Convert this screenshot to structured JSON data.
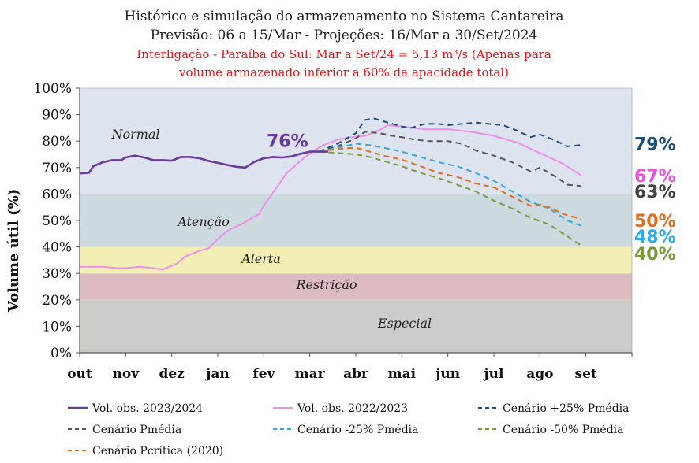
{
  "chart_data": {
    "type": "line",
    "title_lines": [
      "Histórico e simulação do armazenamento no Sistema Cantareira",
      "Previsão: 06 a 15/Mar -  Projeções: 16/Mar a 30/Set/2024"
    ],
    "subtitle_red_lines": [
      "Interligação - Paraíba do Sul:  Mar a Set/24 = 5,13 m³/s (Apenas para",
      "volume armazenado inferior a 60% da apacidade total)"
    ],
    "ylabel": "Volume útil (%)",
    "ylim": [
      0,
      100
    ],
    "yticks": [
      "0%",
      "10%",
      "20%",
      "30%",
      "40%",
      "50%",
      "60%",
      "70%",
      "80%",
      "90%",
      "100%"
    ],
    "xtick_labels": [
      "out",
      "nov",
      "dez",
      "jan",
      "fev",
      "mar",
      "abr",
      "mai",
      "jun",
      "jul",
      "ago",
      "set"
    ],
    "zones": [
      {
        "name": "Especial",
        "from": 0,
        "to": 20,
        "color": "#cdccc8"
      },
      {
        "name": "Restrição",
        "from": 20,
        "to": 30,
        "color": "#dcbcc0"
      },
      {
        "name": "Alerta",
        "from": 30,
        "to": 40,
        "color": "#f3eeb4"
      },
      {
        "name": "Atenção",
        "from": 40,
        "to": 60,
        "color": "#ccdae0"
      },
      {
        "name": "Normal",
        "from": 60,
        "to": 100,
        "color": "#dde3ef"
      }
    ],
    "annotation": {
      "text": "76%",
      "color": "#6a3a9c"
    },
    "series": [
      {
        "name": "Vol. obs. 2023/2024",
        "color": "#6a3a9c",
        "dash": "solid",
        "x": [
          0.0,
          0.2,
          0.3,
          0.5,
          0.7,
          0.9,
          1.0,
          1.2,
          1.4,
          1.6,
          1.8,
          2.0,
          2.2,
          2.4,
          2.6,
          2.8,
          3.0,
          3.2,
          3.4,
          3.6,
          3.8,
          4.0,
          4.2,
          4.4,
          4.6,
          4.8,
          5.0,
          5.2,
          5.4
        ],
        "y": [
          67.8,
          68.0,
          70.5,
          72.0,
          72.8,
          72.8,
          73.8,
          74.5,
          73.8,
          72.8,
          72.8,
          72.6,
          74.0,
          74.0,
          73.5,
          72.5,
          71.8,
          71.0,
          70.3,
          70.0,
          72.2,
          73.5,
          74.0,
          73.8,
          74.2,
          75.2,
          76.0,
          76.0,
          76.0
        ]
      },
      {
        "name": "Vol. obs. 2022/2023",
        "color": "#ee90ea",
        "dash": "solid",
        "x": [
          0.0,
          0.5,
          0.8,
          1.0,
          1.3,
          1.6,
          1.8,
          1.9,
          2.1,
          2.3,
          2.6,
          2.8,
          3.0,
          3.2,
          3.5,
          3.8,
          3.9,
          4.0,
          4.1,
          4.3,
          4.5,
          4.7,
          4.9,
          5.1,
          5.3,
          5.6,
          5.9,
          6.2,
          6.5,
          6.7,
          7.0,
          7.5,
          8.0,
          8.5,
          9.0,
          9.5,
          10.0,
          10.5,
          10.9
        ],
        "y": [
          32.5,
          32.5,
          32.0,
          32.0,
          32.5,
          32.0,
          31.5,
          32.2,
          33.5,
          36.5,
          38.5,
          39.5,
          43.0,
          46.0,
          48.5,
          51.5,
          52.5,
          55.5,
          58.0,
          63.0,
          68.0,
          71.0,
          74.0,
          76.5,
          78.5,
          80.5,
          81.5,
          82.0,
          84.0,
          86.0,
          85.5,
          84.5,
          84.5,
          83.5,
          82.0,
          79.5,
          75.5,
          71.5,
          67.0
        ]
      },
      {
        "name": "Cenário +25% Pmédia",
        "color": "#1f4e79",
        "dash": "7,5",
        "x": [
          5.2,
          5.6,
          6.0,
          6.2,
          6.4,
          6.6,
          6.8,
          7.0,
          7.2,
          7.5,
          7.8,
          8.0,
          8.3,
          8.6,
          8.9,
          9.2,
          9.5,
          9.8,
          10.0,
          10.3,
          10.6,
          10.9
        ],
        "y": [
          76.0,
          79.0,
          83.0,
          88.0,
          88.5,
          87.5,
          86.5,
          85.5,
          85.0,
          86.5,
          86.5,
          86.0,
          86.5,
          87.0,
          86.5,
          86.0,
          84.0,
          81.5,
          82.5,
          80.5,
          78.0,
          78.5
        ]
      },
      {
        "name": "Cenário Pmédia",
        "color": "#555555",
        "dash": "7,5",
        "x": [
          5.2,
          5.6,
          6.0,
          6.2,
          6.5,
          6.8,
          7.0,
          7.3,
          7.6,
          8.0,
          8.3,
          8.6,
          9.0,
          9.4,
          9.8,
          10.0,
          10.3,
          10.6,
          10.9
        ],
        "y": [
          76.0,
          78.0,
          81.0,
          83.5,
          83.0,
          82.0,
          81.5,
          80.5,
          80.0,
          80.0,
          79.0,
          76.5,
          74.5,
          72.0,
          68.5,
          70.0,
          67.0,
          63.5,
          63.0
        ]
      },
      {
        "name": "Cenário -25% Pmédia",
        "color": "#3ba7d9",
        "dash": "7,5",
        "x": [
          5.2,
          5.6,
          6.0,
          6.3,
          6.6,
          7.0,
          7.4,
          7.8,
          8.2,
          8.6,
          9.0,
          9.4,
          9.8,
          10.2,
          10.6,
          10.9
        ],
        "y": [
          76.0,
          77.5,
          79.0,
          78.5,
          77.5,
          76.0,
          74.0,
          72.0,
          70.5,
          68.0,
          65.0,
          61.0,
          57.0,
          54.5,
          50.0,
          48.0
        ]
      },
      {
        "name": "Cenário -50% Pmédia",
        "color": "#7a9a3c",
        "dash": "7,5",
        "x": [
          5.2,
          5.6,
          6.0,
          6.3,
          6.6,
          7.0,
          7.4,
          7.8,
          8.2,
          8.6,
          9.0,
          9.4,
          9.8,
          10.2,
          10.6,
          10.9
        ],
        "y": [
          76.0,
          75.5,
          75.0,
          74.0,
          72.5,
          70.5,
          68.0,
          66.0,
          63.5,
          61.0,
          57.5,
          54.5,
          51.0,
          48.5,
          44.0,
          40.5
        ]
      },
      {
        "name": "Cenário Pcrítica (2020)",
        "color": "#e0701e",
        "dash": "7,5",
        "x": [
          5.2,
          5.6,
          6.0,
          6.3,
          6.6,
          7.0,
          7.4,
          7.8,
          8.2,
          8.6,
          9.0,
          9.4,
          9.8,
          10.0,
          10.2,
          10.5,
          10.9
        ],
        "y": [
          76.0,
          77.0,
          77.5,
          76.0,
          74.5,
          73.0,
          70.5,
          68.0,
          66.5,
          64.0,
          62.5,
          59.0,
          55.5,
          56.0,
          55.0,
          52.5,
          50.5
        ]
      }
    ],
    "end_labels": [
      {
        "text": "79%",
        "y": 79,
        "color": "#1f4e79"
      },
      {
        "text": "67%",
        "y": 67,
        "color": "#ee4fe4"
      },
      {
        "text": "63%",
        "y": 61,
        "color": "#444444"
      },
      {
        "text": "50%",
        "y": 50,
        "color": "#e0701e"
      },
      {
        "text": "48%",
        "y": 44,
        "color": "#2aaee6"
      },
      {
        "text": "40%",
        "y": 37.5,
        "color": "#7a9a3c"
      }
    ],
    "legend_placement": "bottom"
  }
}
